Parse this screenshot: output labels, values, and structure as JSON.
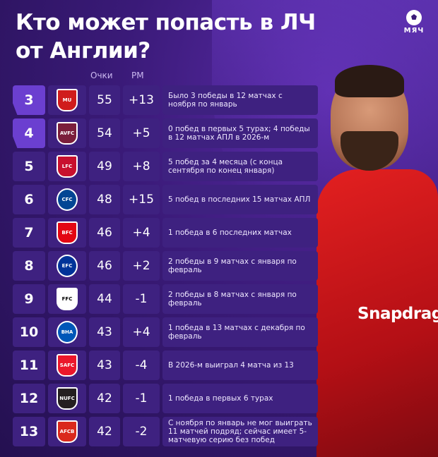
{
  "title": "Кто может попасть в ЛЧ от Англии?",
  "logo": {
    "text": "МЯЧ",
    "icon": "football-icon"
  },
  "headers": {
    "points": "Очки",
    "goal_diff": "РМ"
  },
  "player": {
    "sponsor": "Snapdrag"
  },
  "colors": {
    "background": "#3a1a78",
    "cell": "#3e2180",
    "highlight": "#6b3fd0"
  },
  "rows": [
    {
      "rank": "3",
      "club_icon": "man-utd-crest-icon",
      "crest_color": "#d01c1c",
      "badge": "MU",
      "points": "55",
      "goal_diff": "+13",
      "note": "Было 3 победы в 12 матчах с ноября по январь"
    },
    {
      "rank": "4",
      "club_icon": "aston-villa-crest-icon",
      "crest_color": "#7b1e3b",
      "badge": "AVFC",
      "points": "54",
      "goal_diff": "+5",
      "note": "0 побед в первых 5 турах; 4 победы в 12 матчах АПЛ в 2026-м"
    },
    {
      "rank": "5",
      "club_icon": "liverpool-crest-icon",
      "crest_color": "#c8102e",
      "badge": "LFC",
      "points": "49",
      "goal_diff": "+8",
      "note": "5 побед за 4 месяца (с конца сентября по конец января)"
    },
    {
      "rank": "6",
      "club_icon": "chelsea-crest-icon",
      "crest_color": "#034694",
      "badge": "CFC",
      "points": "48",
      "goal_diff": "+15",
      "note": "5 побед в последних 15 матчах АПЛ"
    },
    {
      "rank": "7",
      "club_icon": "brentford-crest-icon",
      "crest_color": "#e30613",
      "badge": "BFC",
      "points": "46",
      "goal_diff": "+4",
      "note": "1 победа в 6 последних матчах"
    },
    {
      "rank": "8",
      "club_icon": "everton-crest-icon",
      "crest_color": "#003399",
      "badge": "EFC",
      "points": "46",
      "goal_diff": "+2",
      "note": "2 победы в 9 матчах с января по февраль"
    },
    {
      "rank": "9",
      "club_icon": "fulham-crest-icon",
      "crest_color": "#ffffff",
      "badge": "FFC",
      "points": "44",
      "goal_diff": "-1",
      "note": "2 победы в 8 матчах с января по февраль"
    },
    {
      "rank": "10",
      "club_icon": "brighton-crest-icon",
      "crest_color": "#0057b8",
      "badge": "BHA",
      "points": "43",
      "goal_diff": "+4",
      "note": "1 победа в 13 матчах с декабря по февраль"
    },
    {
      "rank": "11",
      "club_icon": "sunderland-crest-icon",
      "crest_color": "#eb172b",
      "badge": "SAFC",
      "points": "43",
      "goal_diff": "-4",
      "note": "В 2026-м выиграл 4 матча из 13"
    },
    {
      "rank": "12",
      "club_icon": "newcastle-crest-icon",
      "crest_color": "#241f20",
      "badge": "NUFC",
      "points": "42",
      "goal_diff": "-1",
      "note": "1 победа в первых 6 турах"
    },
    {
      "rank": "13",
      "club_icon": "bournemouth-crest-icon",
      "crest_color": "#da291c",
      "badge": "AFCB",
      "points": "42",
      "goal_diff": "-2",
      "note": "С ноября по январь не мог выиграть 11 матчей подряд; сейчас имеет 5-матчевую серию без побед"
    }
  ]
}
